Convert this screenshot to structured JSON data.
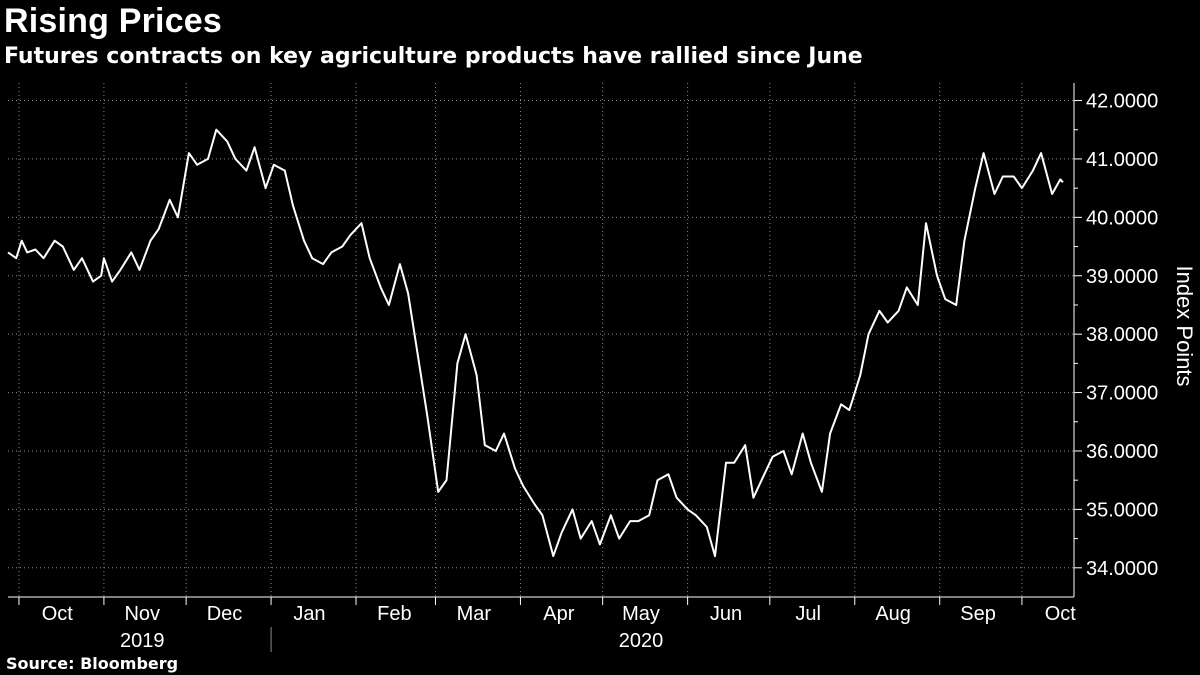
{
  "title": "Rising Prices",
  "subtitle": "Futures contracts on key agriculture products have rallied since June",
  "source": "Source: Bloomberg",
  "colors": {
    "background": "#000000",
    "line": "#ffffff",
    "grid": "#8a8a8a",
    "text": "#ffffff"
  },
  "chart_data": {
    "type": "line",
    "title": "Rising Prices",
    "subtitle": "Futures contracts on key agriculture products have rallied since June",
    "xlabel": "",
    "ylabel": "Index Points",
    "ylim": [
      33.5,
      42.3
    ],
    "y_ticks": [
      34,
      35,
      36,
      37,
      38,
      39,
      40,
      41,
      42
    ],
    "y_tick_labels": [
      "34.0000",
      "35.0000",
      "36.0000",
      "37.0000",
      "38.0000",
      "39.0000",
      "40.0000",
      "41.0000",
      "42.0000"
    ],
    "y_axis_side": "right",
    "xlim": [
      "2019-09-27",
      "2020-10-20"
    ],
    "x_month_labels": [
      {
        "label": "Oct",
        "date": "2019-10-15"
      },
      {
        "label": "Nov",
        "date": "2019-11-15"
      },
      {
        "label": "Dec",
        "date": "2019-12-15"
      },
      {
        "label": "Jan",
        "date": "2020-01-15"
      },
      {
        "label": "Feb",
        "date": "2020-02-15"
      },
      {
        "label": "Mar",
        "date": "2020-03-15"
      },
      {
        "label": "Apr",
        "date": "2020-04-15"
      },
      {
        "label": "May",
        "date": "2020-05-15"
      },
      {
        "label": "Jun",
        "date": "2020-06-15"
      },
      {
        "label": "Jul",
        "date": "2020-07-15"
      },
      {
        "label": "Aug",
        "date": "2020-08-15"
      },
      {
        "label": "Sep",
        "date": "2020-09-15"
      },
      {
        "label": "Oct",
        "date": "2020-10-15"
      }
    ],
    "x_year_labels": [
      {
        "label": "2019",
        "date": "2019-11-15"
      },
      {
        "label": "2020",
        "date": "2020-05-15"
      }
    ],
    "grid": true,
    "legend": "none",
    "series": [
      {
        "x": [
          "2019-09-27",
          "2019-09-30",
          "2019-10-02",
          "2019-10-04",
          "2019-10-07",
          "2019-10-10",
          "2019-10-14",
          "2019-10-17",
          "2019-10-21",
          "2019-10-24",
          "2019-10-28",
          "2019-10-31",
          "2019-11-01",
          "2019-11-04",
          "2019-11-07",
          "2019-11-11",
          "2019-11-14",
          "2019-11-18",
          "2019-11-21",
          "2019-11-25",
          "2019-11-28",
          "2019-12-02",
          "2019-12-05",
          "2019-12-09",
          "2019-12-12",
          "2019-12-16",
          "2019-12-19",
          "2019-12-23",
          "2019-12-26",
          "2019-12-30",
          "2020-01-02",
          "2020-01-06",
          "2020-01-09",
          "2020-01-13",
          "2020-01-16",
          "2020-01-20",
          "2020-01-23",
          "2020-01-27",
          "2020-01-30",
          "2020-02-03",
          "2020-02-06",
          "2020-02-10",
          "2020-02-13",
          "2020-02-17",
          "2020-02-20",
          "2020-02-24",
          "2020-02-27",
          "2020-03-02",
          "2020-03-05",
          "2020-03-09",
          "2020-03-12",
          "2020-03-16",
          "2020-03-19",
          "2020-03-23",
          "2020-03-26",
          "2020-03-30",
          "2020-04-02",
          "2020-04-06",
          "2020-04-09",
          "2020-04-13",
          "2020-04-16",
          "2020-04-20",
          "2020-04-23",
          "2020-04-27",
          "2020-04-30",
          "2020-05-04",
          "2020-05-07",
          "2020-05-11",
          "2020-05-14",
          "2020-05-18",
          "2020-05-21",
          "2020-05-25",
          "2020-05-28",
          "2020-06-01",
          "2020-06-04",
          "2020-06-08",
          "2020-06-11",
          "2020-06-15",
          "2020-06-18",
          "2020-06-22",
          "2020-06-25",
          "2020-06-29",
          "2020-07-02",
          "2020-07-06",
          "2020-07-09",
          "2020-07-13",
          "2020-07-16",
          "2020-07-20",
          "2020-07-23",
          "2020-07-27",
          "2020-07-30",
          "2020-08-03",
          "2020-08-06",
          "2020-08-10",
          "2020-08-13",
          "2020-08-17",
          "2020-08-20",
          "2020-08-24",
          "2020-08-27",
          "2020-08-31",
          "2020-09-03",
          "2020-09-07",
          "2020-09-10",
          "2020-09-14",
          "2020-09-17",
          "2020-09-21",
          "2020-09-24",
          "2020-09-28",
          "2020-10-01",
          "2020-10-05",
          "2020-10-08",
          "2020-10-12",
          "2020-10-15",
          "2020-10-16"
        ],
        "y": [
          39.4,
          39.3,
          39.6,
          39.4,
          39.45,
          39.3,
          39.6,
          39.5,
          39.1,
          39.3,
          38.9,
          39.0,
          39.3,
          38.9,
          39.1,
          39.4,
          39.1,
          39.6,
          39.8,
          40.3,
          40.0,
          41.1,
          40.9,
          41.0,
          41.5,
          41.3,
          41.0,
          40.8,
          41.2,
          40.5,
          40.9,
          40.8,
          40.2,
          39.6,
          39.3,
          39.2,
          39.4,
          39.5,
          39.7,
          39.9,
          39.3,
          38.8,
          38.5,
          39.2,
          38.7,
          37.5,
          36.6,
          35.3,
          35.5,
          37.5,
          38.0,
          37.3,
          36.1,
          36.0,
          36.3,
          35.7,
          35.4,
          35.1,
          34.9,
          34.2,
          34.6,
          35.0,
          34.5,
          34.8,
          34.4,
          34.9,
          34.5,
          34.8,
          34.8,
          34.9,
          35.5,
          35.6,
          35.2,
          35.0,
          34.9,
          34.7,
          34.2,
          35.8,
          35.8,
          36.1,
          35.2,
          35.6,
          35.9,
          36.0,
          35.6,
          36.3,
          35.8,
          35.3,
          36.3,
          36.8,
          36.7,
          37.3,
          38.0,
          38.4,
          38.2,
          38.4,
          38.8,
          38.5,
          39.9,
          39.0,
          38.6,
          38.5,
          39.6,
          40.5,
          41.1,
          40.4,
          40.7,
          40.7,
          40.5,
          40.8,
          41.1,
          40.4,
          40.65,
          40.6
        ]
      }
    ]
  }
}
